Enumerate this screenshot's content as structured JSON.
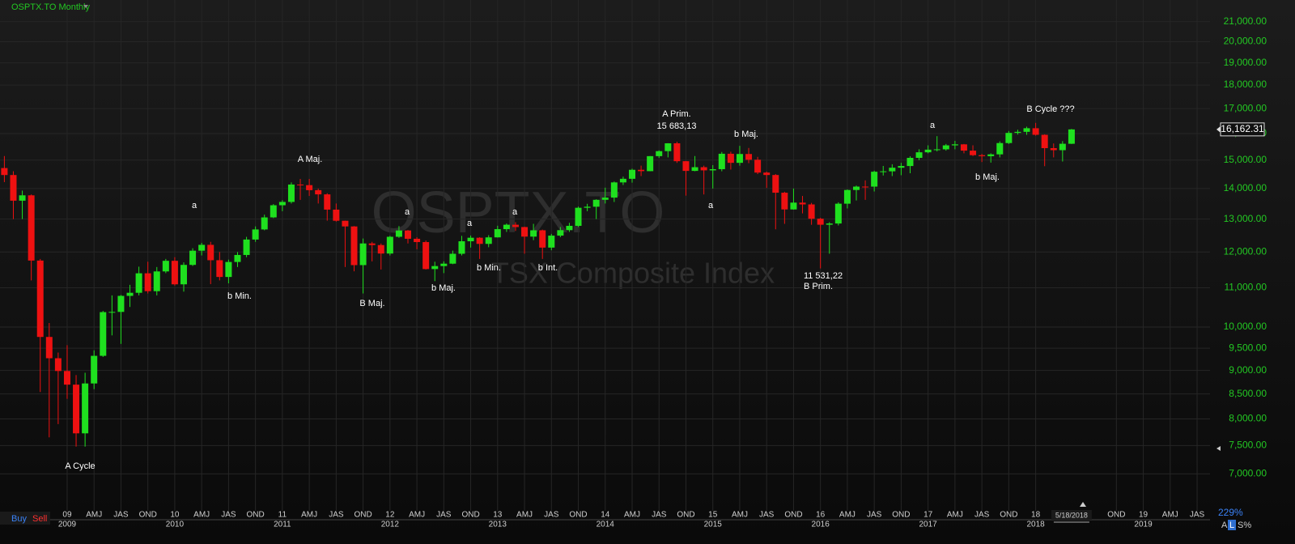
{
  "chart_data": {
    "type": "candlestick",
    "title": "OSPTX.TO Monthly",
    "watermark": "OSPTX.TO",
    "subtitle": "TSX Composite Index",
    "log_scale": true,
    "grid": true,
    "up_color": "#1fe01f",
    "down_color": "#ee1111",
    "x": [
      "2008-06",
      "2008-07",
      "2008-08",
      "2008-09",
      "2008-10",
      "2008-11",
      "2008-12",
      "2009-01",
      "2009-02",
      "2009-03",
      "2009-04",
      "2009-05",
      "2009-06",
      "2009-07",
      "2009-08",
      "2009-09",
      "2009-10",
      "2009-11",
      "2009-12",
      "2010-01",
      "2010-02",
      "2010-03",
      "2010-04",
      "2010-05",
      "2010-06",
      "2010-07",
      "2010-08",
      "2010-09",
      "2010-10",
      "2010-11",
      "2010-12",
      "2011-01",
      "2011-02",
      "2011-03",
      "2011-04",
      "2011-05",
      "2011-06",
      "2011-07",
      "2011-08",
      "2011-09",
      "2011-10",
      "2011-11",
      "2011-12",
      "2012-01",
      "2012-02",
      "2012-03",
      "2012-04",
      "2012-05",
      "2012-06",
      "2012-07",
      "2012-08",
      "2012-09",
      "2012-10",
      "2012-11",
      "2012-12",
      "2013-01",
      "2013-02",
      "2013-03",
      "2013-04",
      "2013-05",
      "2013-06",
      "2013-07",
      "2013-08",
      "2013-09",
      "2013-10",
      "2013-11",
      "2013-12",
      "2014-01",
      "2014-02",
      "2014-03",
      "2014-04",
      "2014-05",
      "2014-06",
      "2014-07",
      "2014-08",
      "2014-09",
      "2014-10",
      "2014-11",
      "2014-12",
      "2015-01",
      "2015-02",
      "2015-03",
      "2015-04",
      "2015-05",
      "2015-06",
      "2015-07",
      "2015-08",
      "2015-09",
      "2015-10",
      "2015-11",
      "2015-12",
      "2016-01",
      "2016-02",
      "2016-03",
      "2016-04",
      "2016-05",
      "2016-06",
      "2016-07",
      "2016-08",
      "2016-09",
      "2016-10",
      "2016-11",
      "2016-12",
      "2017-01",
      "2017-02",
      "2017-03",
      "2017-04",
      "2017-05",
      "2017-06",
      "2017-07",
      "2017-08",
      "2017-09",
      "2017-10",
      "2017-11",
      "2017-12",
      "2018-01",
      "2018-02",
      "2018-03",
      "2018-04",
      "2018-05"
    ],
    "open": [
      14714,
      14467,
      13593,
      13771,
      11753,
      9763,
      9271,
      8988,
      8695,
      7725,
      8720,
      9325,
      10370,
      10375,
      10787,
      10868,
      11395,
      10911,
      11447,
      11746,
      11094,
      11630,
      12038,
      12211,
      11763,
      11294,
      11713,
      11914,
      12369,
      12676,
      13052,
      13443,
      13552,
      14137,
      14116,
      13945,
      13803,
      13301,
      12946,
      12769,
      11624,
      12252,
      12204,
      11955,
      12452,
      12644,
      12392,
      12293,
      11513,
      11597,
      11665,
      11949,
      12317,
      12423,
      12239,
      12434,
      12685,
      12822,
      12750,
      12457,
      12650,
      12129,
      12487,
      12654,
      12787,
      13361,
      13395,
      13622,
      13695,
      14210,
      14335,
      14652,
      14604,
      15146,
      15331,
      15626,
      14961,
      14613,
      14745,
      14632,
      14674,
      15234,
      14902,
      15225,
      15014,
      14553,
      14468,
      13859,
      13307,
      13529,
      13470,
      13010,
      12822,
      12860,
      13494,
      13951,
      14066,
      14065,
      14583,
      14598,
      14726,
      14787,
      15083,
      15288,
      15386,
      15399,
      15548,
      15586,
      15350,
      15182,
      15144,
      15212,
      15635,
      16026,
      16067,
      16209,
      15952,
      15443,
      15367,
      15608
    ],
    "high": [
      15150,
      14600,
      13930,
      13800,
      11800,
      10100,
      9400,
      9570,
      8900,
      8950,
      9450,
      10400,
      10800,
      10810,
      11080,
      11580,
      11720,
      11570,
      11800,
      11850,
      11700,
      12110,
      12270,
      12300,
      12000,
      11780,
      12000,
      12450,
      12770,
      13140,
      13480,
      13610,
      14210,
      14330,
      14330,
      14000,
      13840,
      13500,
      12950,
      12780,
      12400,
      12300,
      12250,
      12480,
      12780,
      12660,
      12440,
      12340,
      11720,
      11730,
      12040,
      12480,
      12490,
      12440,
      12500,
      12790,
      12860,
      12900,
      12760,
      12850,
      12670,
      12540,
      12750,
      12880,
      13400,
      13490,
      13640,
      14030,
      14240,
      14410,
      14690,
      14800,
      15150,
      15360,
      15630,
      15685,
      14970,
      15150,
      14800,
      14820,
      15300,
      15310,
      15530,
      15450,
      15120,
      14590,
      14500,
      13890,
      14000,
      13750,
      13520,
      13040,
      12900,
      13540,
      13970,
      14100,
      14280,
      14620,
      14790,
      14850,
      14900,
      15140,
      15400,
      15550,
      15900,
      15600,
      15720,
      15600,
      15550,
      15230,
      15250,
      15700,
      16100,
      16150,
      16270,
      16420,
      15970,
      15620,
      15710,
      16180
    ],
    "low": [
      14220,
      13000,
      13000,
      11200,
      8540,
      7650,
      7900,
      8400,
      7480,
      7480,
      8600,
      9300,
      9800,
      9600,
      10500,
      10800,
      10850,
      10800,
      11400,
      11060,
      10900,
      11600,
      11900,
      11100,
      11200,
      11120,
      11570,
      11850,
      12300,
      12650,
      13030,
      13250,
      13500,
      13620,
      13750,
      13500,
      12950,
      12920,
      11570,
      11450,
      10850,
      11730,
      11500,
      11900,
      12420,
      12250,
      12080,
      11500,
      11180,
      11400,
      11650,
      11900,
      12130,
      11800,
      12140,
      12430,
      12600,
      12630,
      11950,
      12350,
      11800,
      12050,
      12440,
      12600,
      12750,
      13250,
      13000,
      13500,
      13550,
      14120,
      14200,
      14430,
      14600,
      15080,
      15100,
      14900,
      13760,
      14600,
      13800,
      14000,
      14600,
      14660,
      14800,
      14890,
      14500,
      14020,
      12680,
      12850,
      13300,
      13180,
      12820,
      11531,
      11950,
      12800,
      13340,
      13600,
      13620,
      13900,
      14450,
      14430,
      14460,
      14530,
      15000,
      15250,
      15320,
      15350,
      15400,
      15250,
      15150,
      14930,
      14910,
      15100,
      15600,
      15960,
      15950,
      15920,
      14780,
      15100,
      14950,
      15600
    ],
    "close": [
      14467,
      13593,
      13771,
      11753,
      9763,
      9271,
      8988,
      8695,
      7725,
      8720,
      9325,
      10370,
      10375,
      10787,
      10868,
      11395,
      10911,
      11447,
      11746,
      11094,
      11630,
      12038,
      12211,
      11763,
      11294,
      11713,
      11914,
      12369,
      12676,
      13052,
      13443,
      13552,
      14137,
      14116,
      13945,
      13803,
      13301,
      12946,
      12769,
      11624,
      12252,
      12204,
      11955,
      12452,
      12644,
      12392,
      12293,
      11513,
      11597,
      11665,
      11949,
      12317,
      12423,
      12239,
      12434,
      12685,
      12822,
      12750,
      12457,
      12650,
      12129,
      12487,
      12654,
      12787,
      13361,
      13395,
      13622,
      13695,
      14210,
      14335,
      14652,
      14604,
      15146,
      15331,
      15626,
      14961,
      14613,
      14745,
      14632,
      14674,
      15234,
      14902,
      15225,
      15014,
      14553,
      14468,
      13859,
      13307,
      13529,
      13470,
      13010,
      12822,
      12860,
      13494,
      13951,
      14066,
      14065,
      14583,
      14598,
      14726,
      14787,
      15083,
      15288,
      15386,
      15399,
      15548,
      15586,
      15350,
      15182,
      15144,
      15212,
      15635,
      16026,
      16067,
      16209,
      15952,
      15443,
      15367,
      15608,
      16162
    ],
    "ylim": [
      6400,
      21700
    ],
    "yticks": [
      {
        "value": 21000,
        "label": "21,000.00"
      },
      {
        "value": 20000,
        "label": "20,000.00"
      },
      {
        "value": 19000,
        "label": "19,000.00"
      },
      {
        "value": 18000,
        "label": "18,000.00"
      },
      {
        "value": 17000,
        "label": "17,000.00"
      },
      {
        "value": 16000,
        "label": "16,000.00"
      },
      {
        "value": 15000,
        "label": "15,000.00"
      },
      {
        "value": 14000,
        "label": "14,000.00"
      },
      {
        "value": 13000,
        "label": "13,000.00"
      },
      {
        "value": 12000,
        "label": "12,000.00"
      },
      {
        "value": 11000,
        "label": "11,000.00"
      },
      {
        "value": 10000,
        "label": "10,000.00"
      },
      {
        "value": 9500,
        "label": "9,500.00"
      },
      {
        "value": 9000,
        "label": "9,000.00"
      },
      {
        "value": 8500,
        "label": "8,500.00"
      },
      {
        "value": 8000,
        "label": "8,000.00"
      },
      {
        "value": 7500,
        "label": "7,500.00"
      },
      {
        "value": 7000,
        "label": "7,000.00"
      }
    ],
    "xticks": [
      {
        "value": "2009-01",
        "label": "09"
      },
      {
        "value": "2009-04",
        "label": "AMJ"
      },
      {
        "value": "2009-07",
        "label": "JAS"
      },
      {
        "value": "2009-10",
        "label": "OND"
      },
      {
        "value": "2010-01",
        "label": "10"
      },
      {
        "value": "2010-04",
        "label": "AMJ"
      },
      {
        "value": "2010-07",
        "label": "JAS"
      },
      {
        "value": "2010-10",
        "label": "OND"
      },
      {
        "value": "2011-01",
        "label": "11"
      },
      {
        "value": "2011-04",
        "label": "AMJ"
      },
      {
        "value": "2011-07",
        "label": "JAS"
      },
      {
        "value": "2011-10",
        "label": "OND"
      },
      {
        "value": "2012-01",
        "label": "12"
      },
      {
        "value": "2012-04",
        "label": "AMJ"
      },
      {
        "value": "2012-07",
        "label": "JAS"
      },
      {
        "value": "2012-10",
        "label": "OND"
      },
      {
        "value": "2013-01",
        "label": "13"
      },
      {
        "value": "2013-04",
        "label": "AMJ"
      },
      {
        "value": "2013-07",
        "label": "JAS"
      },
      {
        "value": "2013-10",
        "label": "OND"
      },
      {
        "value": "2014-01",
        "label": "14"
      },
      {
        "value": "2014-04",
        "label": "AMJ"
      },
      {
        "value": "2014-07",
        "label": "JAS"
      },
      {
        "value": "2014-10",
        "label": "OND"
      },
      {
        "value": "2015-01",
        "label": "15"
      },
      {
        "value": "2015-04",
        "label": "AMJ"
      },
      {
        "value": "2015-07",
        "label": "JAS"
      },
      {
        "value": "2015-10",
        "label": "OND"
      },
      {
        "value": "2016-01",
        "label": "16"
      },
      {
        "value": "2016-04",
        "label": "AMJ"
      },
      {
        "value": "2016-07",
        "label": "JAS"
      },
      {
        "value": "2016-10",
        "label": "OND"
      },
      {
        "value": "2017-01",
        "label": "17"
      },
      {
        "value": "2017-04",
        "label": "AMJ"
      },
      {
        "value": "2017-07",
        "label": "JAS"
      },
      {
        "value": "2017-10",
        "label": "OND"
      },
      {
        "value": "2018-01",
        "label": "18"
      },
      {
        "value": "2018-10",
        "label": "OND"
      },
      {
        "value": "2019-01",
        "label": "19"
      },
      {
        "value": "2019-04",
        "label": "AMJ"
      },
      {
        "value": "2019-07",
        "label": "JAS"
      }
    ],
    "year_ticks": [
      {
        "value": "2009-01",
        "label": "2009"
      },
      {
        "value": "2010-01",
        "label": "2010"
      },
      {
        "value": "2011-01",
        "label": "2011"
      },
      {
        "value": "2012-01",
        "label": "2012"
      },
      {
        "value": "2013-01",
        "label": "2013"
      },
      {
        "value": "2014-01",
        "label": "2014"
      },
      {
        "value": "2015-01",
        "label": "2015"
      },
      {
        "value": "2016-01",
        "label": "2016"
      },
      {
        "value": "2017-01",
        "label": "2017"
      },
      {
        "value": "2018-01",
        "label": "2018"
      },
      {
        "value": "2019-01",
        "label": "2019"
      }
    ],
    "current_date": "5/18/2018",
    "last_price_label": "16,162.31",
    "annotations": [
      "A Cycle",
      "a",
      "b Min.",
      "A Maj.",
      "B Maj.",
      "a",
      "b Maj.",
      "a",
      "b Min.",
      "a",
      "b Int.",
      "A Prim.",
      "15 683,13",
      "a",
      "b Maj.",
      "11 531,22",
      "B Prim.",
      "a",
      "b Maj.",
      "B Cycle ???"
    ]
  },
  "ui": {
    "buy": "Buy",
    "sell": "Sell",
    "zoom": "229%",
    "scale_a": "A",
    "scale_l": "L",
    "scale_s": "S%"
  }
}
